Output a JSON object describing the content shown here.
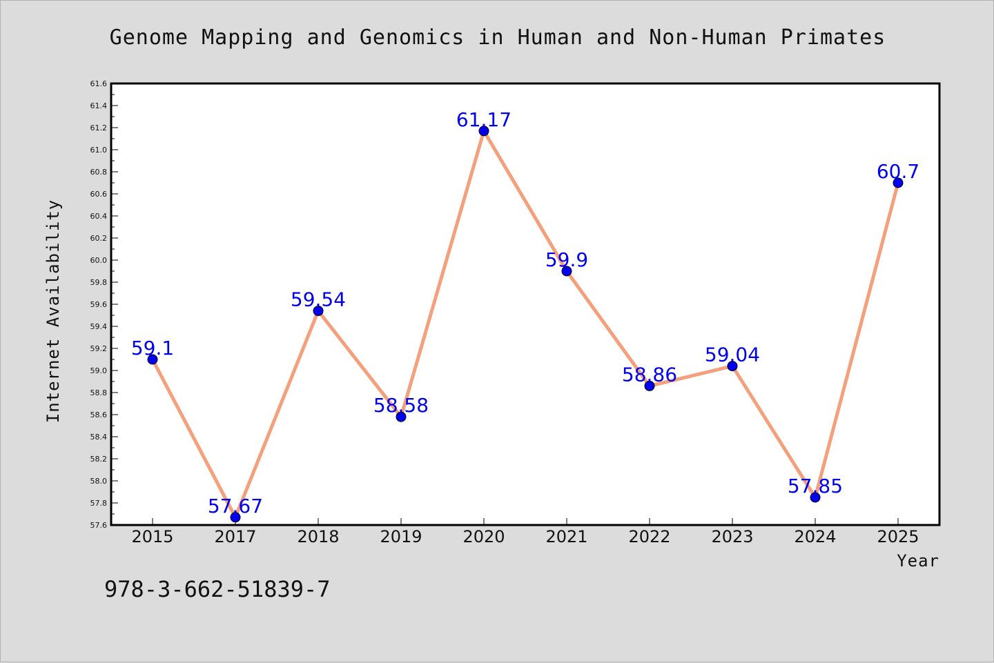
{
  "chart_data": {
    "type": "line",
    "title": "Genome Mapping and Genomics in Human and Non-Human Primates",
    "xlabel": "Year",
    "ylabel": "Internet Availability",
    "categories": [
      "2015",
      "2017",
      "2018",
      "2019",
      "2020",
      "2021",
      "2022",
      "2023",
      "2024",
      "2025"
    ],
    "series": [
      {
        "values": [
          59.1,
          57.67,
          59.54,
          58.58,
          61.17,
          59.9,
          58.86,
          59.04,
          57.85,
          60.7
        ],
        "labels": [
          "59.1",
          "57.67",
          "59.54",
          "58.58",
          "61.17",
          "59.9",
          "58.86",
          "59.04",
          "57.85",
          "60.7"
        ]
      }
    ],
    "ylim": [
      57.6,
      61.6
    ],
    "yticks": [
      "57.6",
      "57.8",
      "58.0",
      "58.2",
      "58.4",
      "58.6",
      "58.8",
      "59.0",
      "59.2",
      "59.4",
      "59.6",
      "59.8",
      "60.0",
      "60.2",
      "60.4",
      "60.6",
      "60.8",
      "61.0",
      "61.2",
      "61.4",
      "61.6"
    ],
    "grid": false,
    "legend": "none",
    "colors": {
      "line": "#f4a07c",
      "marker": "#0000ee",
      "label": "#0000ee",
      "background": "#dcdcdc",
      "plot_background": "#ffffff"
    }
  },
  "footer_text": "978-3-662-51839-7"
}
